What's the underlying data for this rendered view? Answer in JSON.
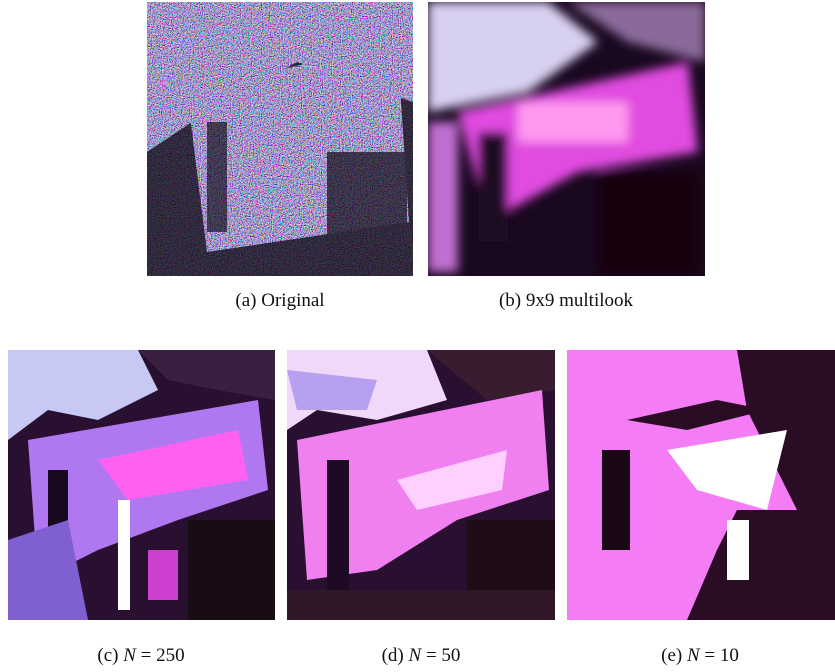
{
  "figure": {
    "panels": [
      {
        "label": "(a)",
        "caption": "Original"
      },
      {
        "label": "(b)",
        "caption": "9x9 multilook"
      },
      {
        "label": "(c)",
        "symbol": "N",
        "relation": "= 250"
      },
      {
        "label": "(d)",
        "symbol": "N",
        "relation": "= 50"
      },
      {
        "label": "(e)",
        "symbol": "N",
        "relation": "= 10"
      }
    ]
  }
}
